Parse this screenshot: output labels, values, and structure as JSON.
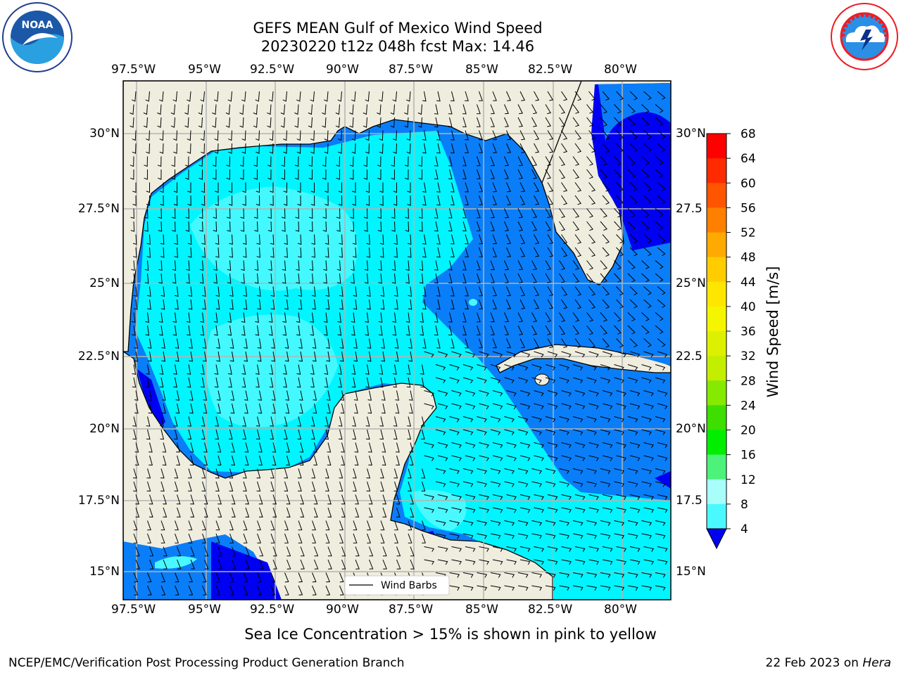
{
  "header": {
    "title_line1": "GEFS MEAN Gulf of Mexico Wind Speed",
    "title_line2": "20230220 t12z 048h fcst   Max: 14.46"
  },
  "logos": {
    "left_name": "NOAA",
    "left_ring": "NATIONAL OCEANIC AND ATMOSPHERIC ADMINISTRATION · U.S. DEPARTMENT OF COMMERCE",
    "right_ring": "NATIONAL WEATHER SERVICE"
  },
  "map": {
    "lon_labels": [
      "97.5°W",
      "95°W",
      "92.5°W",
      "90°W",
      "87.5°W",
      "85°W",
      "82.5°W",
      "80°W"
    ],
    "lat_labels": [
      "30°N",
      "27.5°N",
      "25°N",
      "22.5°N",
      "20°N",
      "17.5°N",
      "15°N"
    ],
    "lat_labels_right": [
      "30°N",
      "27.5",
      "25°N",
      "22.5",
      "20°N",
      "17.5",
      "15°N"
    ],
    "legend_label": "Wind Barbs",
    "colors": {
      "land": "#efedde",
      "ocean_4_8": "#0a7ef9",
      "ocean_8_12": "#00f5ff",
      "ocean_12_16": "#4af9ff",
      "calm": "#0000f2"
    }
  },
  "colorbar": {
    "label": "Wind Speed [m/s]",
    "ticks": [
      "68",
      "64",
      "60",
      "56",
      "52",
      "48",
      "44",
      "40",
      "36",
      "32",
      "28",
      "24",
      "20",
      "16",
      "12",
      "8",
      "4"
    ],
    "colors": [
      "#ff0000",
      "#ff2a00",
      "#ff5500",
      "#ff7f00",
      "#ffaa00",
      "#ffcc00",
      "#ffe600",
      "#f5f500",
      "#ddf000",
      "#c4ee00",
      "#85ea00",
      "#3dde00",
      "#00ef00",
      "#4df27a",
      "#a8fffa",
      "#4af9ff",
      "#00f5ff",
      "#0a7ef9"
    ],
    "under_color": "#0000f2"
  },
  "footer": {
    "note": "Sea Ice Concentration > 15% is shown in pink to yellow",
    "left": "NCEP/EMC/Verification Post Processing Product Generation Branch",
    "date": "22 Feb 2023 on ",
    "host": "Hera"
  }
}
